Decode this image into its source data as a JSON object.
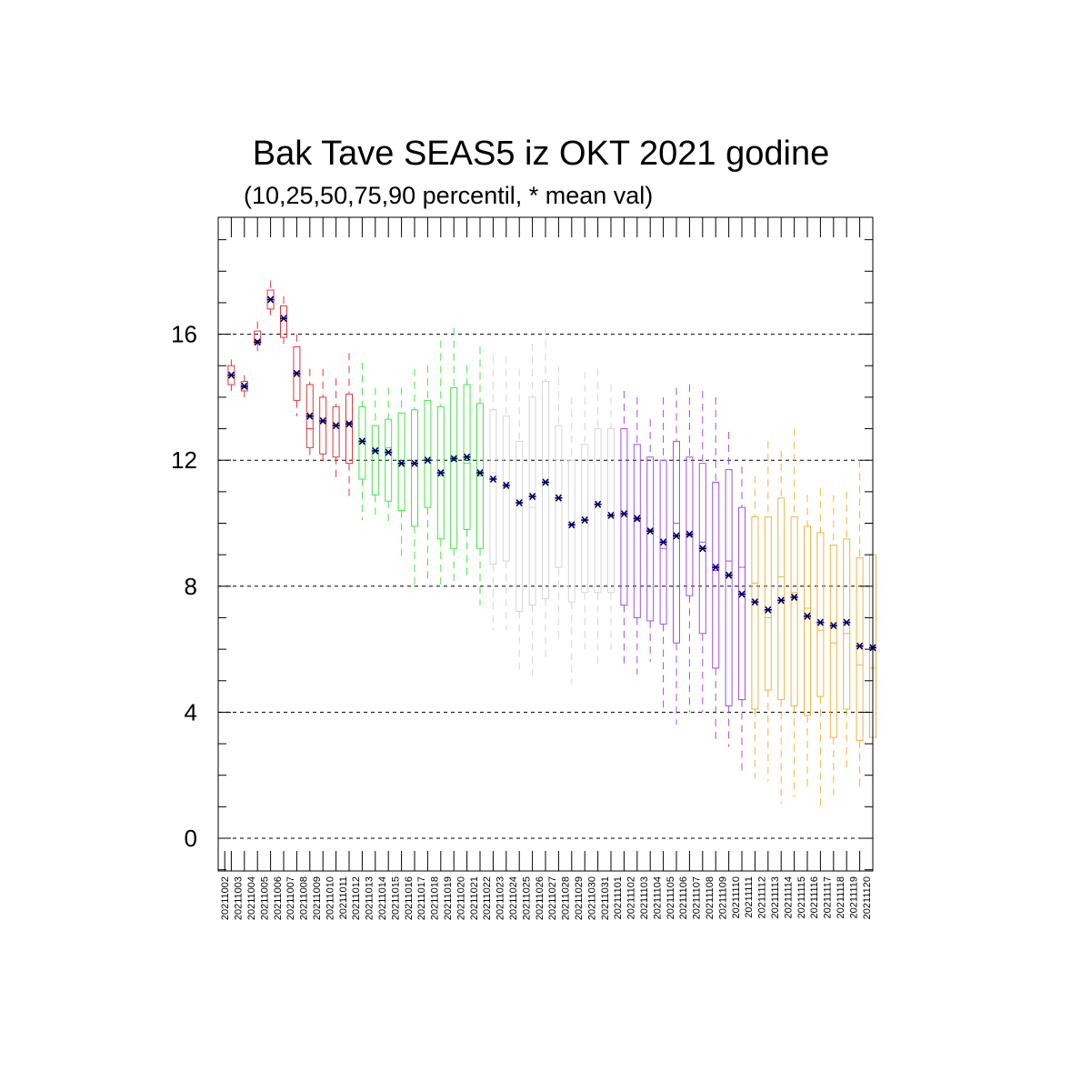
{
  "chart_data": {
    "type": "box",
    "title": "Bak Tave SEAS5 iz OKT 2021 godine",
    "subtitle": "(10,25,50,75,90 percentil, * mean val)",
    "xlabel": "",
    "ylabel": "",
    "ylim": [
      -1,
      19.8
    ],
    "yticks": [
      0,
      4,
      8,
      12,
      16
    ],
    "grid_y": [
      0,
      4,
      8,
      12,
      16
    ],
    "categories": [
      "20211002",
      "20211003",
      "20211004",
      "20211005",
      "20211006",
      "20211007",
      "20211008",
      "20211009",
      "20211010",
      "20211011",
      "20211012",
      "20211013",
      "20211014",
      "20211015",
      "20211016",
      "20211017",
      "20211018",
      "20211019",
      "20211020",
      "20211021",
      "20211022",
      "20211023",
      "20211024",
      "20211025",
      "20211026",
      "20211027",
      "20211028",
      "20211029",
      "20211030",
      "20211031",
      "20211101",
      "20211102",
      "20211103",
      "20211104",
      "20211105",
      "20211106",
      "20211107",
      "20211108",
      "20211109",
      "20211110",
      "20211111",
      "20211112",
      "20211113",
      "20211114",
      "20211115",
      "20211116",
      "20211117",
      "20211118",
      "20211119",
      "20211120"
    ],
    "colors": [
      "#e8333a",
      "#e8333a",
      "#e8333a",
      "#e8333a",
      "#e8333a",
      "#e8333a",
      "#e8333a",
      "#e8333a",
      "#e8333a",
      "#e8333a",
      "#3fe83f",
      "#3fe83f",
      "#3fe83f",
      "#3fe83f",
      "#3fe83f",
      "#3fe83f",
      "#3fe83f",
      "#3fe83f",
      "#3fe83f",
      "#3fe83f",
      "#d6d6d6",
      "#d6d6d6",
      "#d6d6d6",
      "#d6d6d6",
      "#d6d6d6",
      "#d6d6d6",
      "#d6d6d6",
      "#d6d6d6",
      "#d6d6d6",
      "#d6d6d6",
      "#a64de8",
      "#a64de8",
      "#a64de8",
      "#a64de8",
      "#a64de8",
      "#a64de8",
      "#a64de8",
      "#a64de8",
      "#a64de8",
      "#a64de8",
      "#f5b23a",
      "#f5b23a",
      "#f5b23a",
      "#f5b23a",
      "#f5b23a",
      "#f5b23a",
      "#f5b23a",
      "#f5b23a",
      "#f5b23a",
      "#f5b23a"
    ],
    "mean_color": "#000066",
    "grid_color": "#000000",
    "p10": [
      14.2,
      14.0,
      15.3,
      16.6,
      15.7,
      13.4,
      12.0,
      11.9,
      11.4,
      10.8,
      10.1,
      10.2,
      10.0,
      8.8,
      8.0,
      8.1,
      7.9,
      8.1,
      8.2,
      7.4,
      6.6,
      6.6,
      5.3,
      5.1,
      5.7,
      6.2,
      4.9,
      6.0,
      5.4,
      6.0,
      5.5,
      5.2,
      5.6,
      4.1,
      3.6,
      4.0,
      4.0,
      3.0,
      2.9,
      2.0,
      1.9,
      1.8,
      1.1,
      1.3,
      1.5,
      0.9,
      1.2,
      2.1,
      1.6,
      1.2
    ],
    "p25": [
      14.4,
      14.2,
      15.7,
      16.8,
      15.9,
      13.9,
      12.4,
      12.2,
      12.1,
      11.9,
      11.4,
      10.9,
      10.7,
      10.4,
      9.9,
      10.5,
      9.5,
      9.2,
      9.8,
      9.2,
      8.7,
      8.8,
      7.2,
      7.4,
      7.6,
      8.6,
      7.5,
      7.8,
      7.8,
      7.8,
      7.4,
      7.0,
      6.9,
      6.8,
      6.2,
      7.7,
      6.5,
      5.4,
      4.2,
      4.4,
      4.1,
      4.7,
      4.4,
      4.2,
      3.9,
      4.5,
      3.2,
      4.1,
      3.1,
      3.2
    ],
    "p50": [
      14.7,
      14.3,
      15.8,
      17.1,
      16.5,
      14.8,
      13.0,
      13.2,
      13.1,
      13.2,
      12.6,
      12.3,
      12.4,
      11.9,
      11.9,
      12.0,
      11.5,
      12.1,
      11.9,
      11.5,
      11.6,
      11.3,
      10.7,
      10.5,
      11.3,
      10.9,
      10.0,
      10.2,
      10.7,
      10.2,
      10.3,
      10.1,
      9.8,
      9.2,
      10.0,
      9.6,
      9.4,
      8.5,
      8.8,
      8.6,
      8.1,
      7.0,
      8.3,
      7.8,
      7.3,
      6.6,
      6.2,
      6.5,
      5.5,
      5.4
    ],
    "p75": [
      15.0,
      14.5,
      16.1,
      17.4,
      16.9,
      15.6,
      14.4,
      14.0,
      13.7,
      14.1,
      13.7,
      13.1,
      13.3,
      13.5,
      13.6,
      13.9,
      13.7,
      14.3,
      14.4,
      13.8,
      13.6,
      13.4,
      12.6,
      14.0,
      14.5,
      13.1,
      12.0,
      12.5,
      13.0,
      13.0,
      13.0,
      12.5,
      12.1,
      12.0,
      12.6,
      12.1,
      11.9,
      11.3,
      11.7,
      10.5,
      10.2,
      10.2,
      10.8,
      10.2,
      9.9,
      9.7,
      9.3,
      9.5,
      8.9,
      9.0
    ],
    "p90": [
      15.2,
      14.7,
      16.4,
      17.7,
      17.2,
      16.0,
      14.9,
      14.9,
      14.6,
      15.4,
      15.1,
      14.3,
      14.3,
      14.3,
      14.9,
      15.0,
      15.8,
      16.2,
      15.0,
      15.6,
      15.3,
      15.3,
      14.9,
      15.7,
      16.2,
      15.0,
      14.0,
      14.8,
      14.9,
      14.4,
      14.2,
      14.0,
      13.3,
      14.0,
      14.3,
      14.4,
      14.2,
      14.0,
      12.9,
      11.8,
      11.5,
      12.6,
      12.3,
      13.0,
      10.9,
      11.1,
      10.9,
      11.0,
      12.0,
      10.5
    ],
    "mean": [
      14.7,
      14.35,
      15.75,
      17.1,
      16.5,
      14.75,
      13.4,
      13.25,
      13.1,
      13.15,
      12.6,
      12.3,
      12.25,
      11.9,
      11.9,
      12.0,
      11.6,
      12.05,
      12.1,
      11.6,
      11.4,
      11.2,
      10.65,
      10.85,
      11.3,
      10.8,
      9.95,
      10.1,
      10.6,
      10.25,
      10.3,
      10.15,
      9.75,
      9.4,
      9.6,
      9.65,
      9.2,
      8.6,
      8.35,
      7.75,
      7.5,
      7.25,
      7.55,
      7.65,
      7.05,
      6.85,
      6.75,
      6.85,
      6.1,
      6.05
    ]
  }
}
